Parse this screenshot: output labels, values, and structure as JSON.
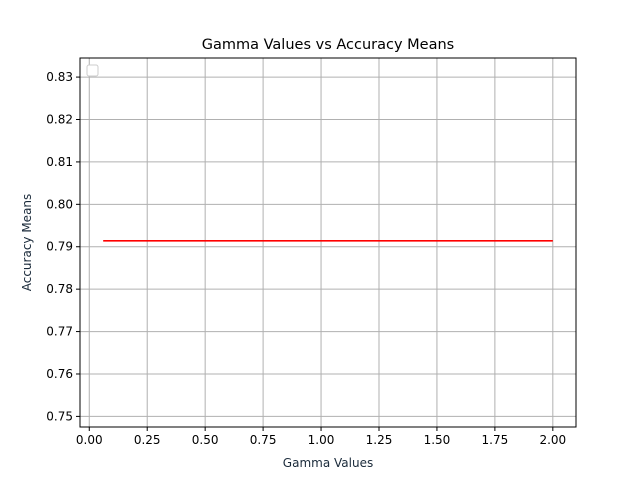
{
  "chart_data": {
    "type": "line",
    "title": "Gamma Values vs Accuracy Means",
    "xlabel": "Gamma Values",
    "ylabel": "Accuracy Means",
    "xlim": [
      -0.04,
      2.1
    ],
    "ylim": [
      0.7475,
      0.8345
    ],
    "xticks": [
      0.0,
      0.25,
      0.5,
      0.75,
      1.0,
      1.25,
      1.5,
      1.75,
      2.0
    ],
    "xtick_labels": [
      "0.00",
      "0.25",
      "0.50",
      "0.75",
      "1.00",
      "1.25",
      "1.50",
      "1.75",
      "2.00"
    ],
    "yticks": [
      0.75,
      0.76,
      0.77,
      0.78,
      0.79,
      0.8,
      0.81,
      0.82,
      0.83
    ],
    "ytick_labels": [
      "0.75",
      "0.76",
      "0.77",
      "0.78",
      "0.79",
      "0.80",
      "0.81",
      "0.82",
      "0.83"
    ],
    "grid": true,
    "legend": "upper-left",
    "series": [
      {
        "color": "#ff0000",
        "x": [
          0.06,
          2.0
        ],
        "y": [
          0.7914,
          0.7914
        ]
      }
    ]
  }
}
